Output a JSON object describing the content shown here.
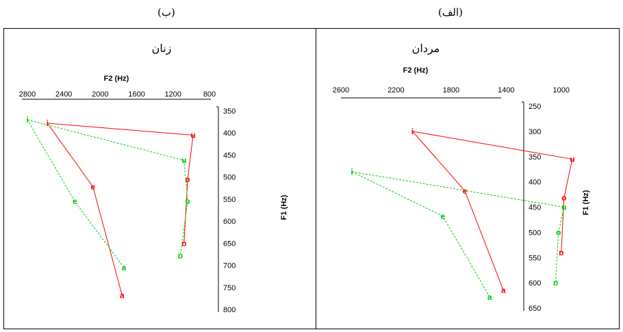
{
  "labels": {
    "left_part": "(ب)",
    "right_part": "(الف)"
  },
  "colors": {
    "male": "#ff0000",
    "female": "#00cc00",
    "axis": "#000000"
  },
  "chart_data": [
    {
      "type": "scatter",
      "panel": "right",
      "title": "مردان",
      "xlabel": "F2 (Hz)",
      "ylabel": "F1 (Hz)",
      "x_reversed": true,
      "y_reversed": true,
      "xlim": [
        2600,
        800
      ],
      "ylim": [
        250,
        650
      ],
      "xticks": [
        "2600",
        "2200",
        "1800",
        "1400",
        "1000"
      ],
      "yticks": [
        "250",
        "300",
        "350",
        "400",
        "450",
        "500",
        "550",
        "600",
        "650"
      ],
      "legend": "none",
      "series": [
        {
          "color": "#ff0000",
          "line_style": "solid",
          "points": [
            {
              "label": "i",
              "f2": 2080,
              "f1": 300
            },
            {
              "label": "u",
              "f2": 920,
              "f1": 355
            },
            {
              "label": "o",
              "f2": 980,
              "f1": 432
            },
            {
              "label": "ɒ",
              "f2": 1000,
              "f1": 540
            },
            {
              "label": "a",
              "f2": 1420,
              "f1": 615
            },
            {
              "label": "e",
              "f2": 1700,
              "f1": 418
            },
            {
              "label": "i",
              "f2": 2080,
              "f1": 300
            }
          ],
          "segments": [
            [
              0,
              1
            ],
            [
              1,
              2
            ],
            [
              2,
              3
            ],
            [
              4,
              5
            ],
            [
              5,
              6
            ]
          ]
        },
        {
          "color": "#00cc00",
          "line_style": "dotted",
          "points": [
            {
              "label": "i",
              "f2": 2520,
              "f1": 380
            },
            {
              "label": "u",
              "f2": 980,
              "f1": 450
            },
            {
              "label": "o",
              "f2": 1020,
              "f1": 500
            },
            {
              "label": "ɒ",
              "f2": 1040,
              "f1": 600
            },
            {
              "label": "a",
              "f2": 1520,
              "f1": 628
            },
            {
              "label": "e",
              "f2": 1860,
              "f1": 468
            },
            {
              "label": "i",
              "f2": 2520,
              "f1": 380
            }
          ],
          "segments": [
            [
              0,
              1
            ],
            [
              1,
              2
            ],
            [
              2,
              3
            ],
            [
              4,
              5
            ],
            [
              5,
              6
            ]
          ]
        }
      ]
    },
    {
      "type": "scatter",
      "panel": "left",
      "title": "زنان",
      "xlabel": "F2 (Hz)",
      "ylabel": "F1 (Hz)",
      "x_reversed": true,
      "y_reversed": true,
      "xlim": [
        2800,
        800
      ],
      "ylim": [
        350,
        800
      ],
      "xticks": [
        "2800",
        "2400",
        "2000",
        "1600",
        "1200",
        "800"
      ],
      "yticks": [
        "350",
        "400",
        "450",
        "500",
        "550",
        "600",
        "650",
        "700",
        "750",
        "800"
      ],
      "legend": "none",
      "series": [
        {
          "color": "#ff0000",
          "line_style": "solid",
          "points": [
            {
              "label": "i",
              "f2": 2580,
              "f1": 378
            },
            {
              "label": "u",
              "f2": 980,
              "f1": 405
            },
            {
              "label": "o",
              "f2": 1040,
              "f1": 505
            },
            {
              "label": "ɒ",
              "f2": 1080,
              "f1": 650
            },
            {
              "label": "a",
              "f2": 1760,
              "f1": 768
            },
            {
              "label": "e",
              "f2": 2080,
              "f1": 522
            },
            {
              "label": "i",
              "f2": 2580,
              "f1": 378
            }
          ],
          "segments": [
            [
              0,
              1
            ],
            [
              1,
              2
            ],
            [
              2,
              3
            ],
            [
              4,
              5
            ],
            [
              5,
              6
            ]
          ]
        },
        {
          "color": "#00cc00",
          "line_style": "dotted",
          "points": [
            {
              "label": "i",
              "f2": 2800,
              "f1": 370
            },
            {
              "label": "u",
              "f2": 1080,
              "f1": 462
            },
            {
              "label": "o",
              "f2": 1040,
              "f1": 555
            },
            {
              "label": "ɒ",
              "f2": 1120,
              "f1": 678
            },
            {
              "label": "a",
              "f2": 1740,
              "f1": 705
            },
            {
              "label": "e",
              "f2": 2280,
              "f1": 555
            },
            {
              "label": "i",
              "f2": 2800,
              "f1": 370
            }
          ],
          "segments": [
            [
              0,
              1
            ],
            [
              1,
              2
            ],
            [
              2,
              3
            ],
            [
              4,
              5
            ],
            [
              5,
              6
            ]
          ]
        }
      ]
    }
  ]
}
